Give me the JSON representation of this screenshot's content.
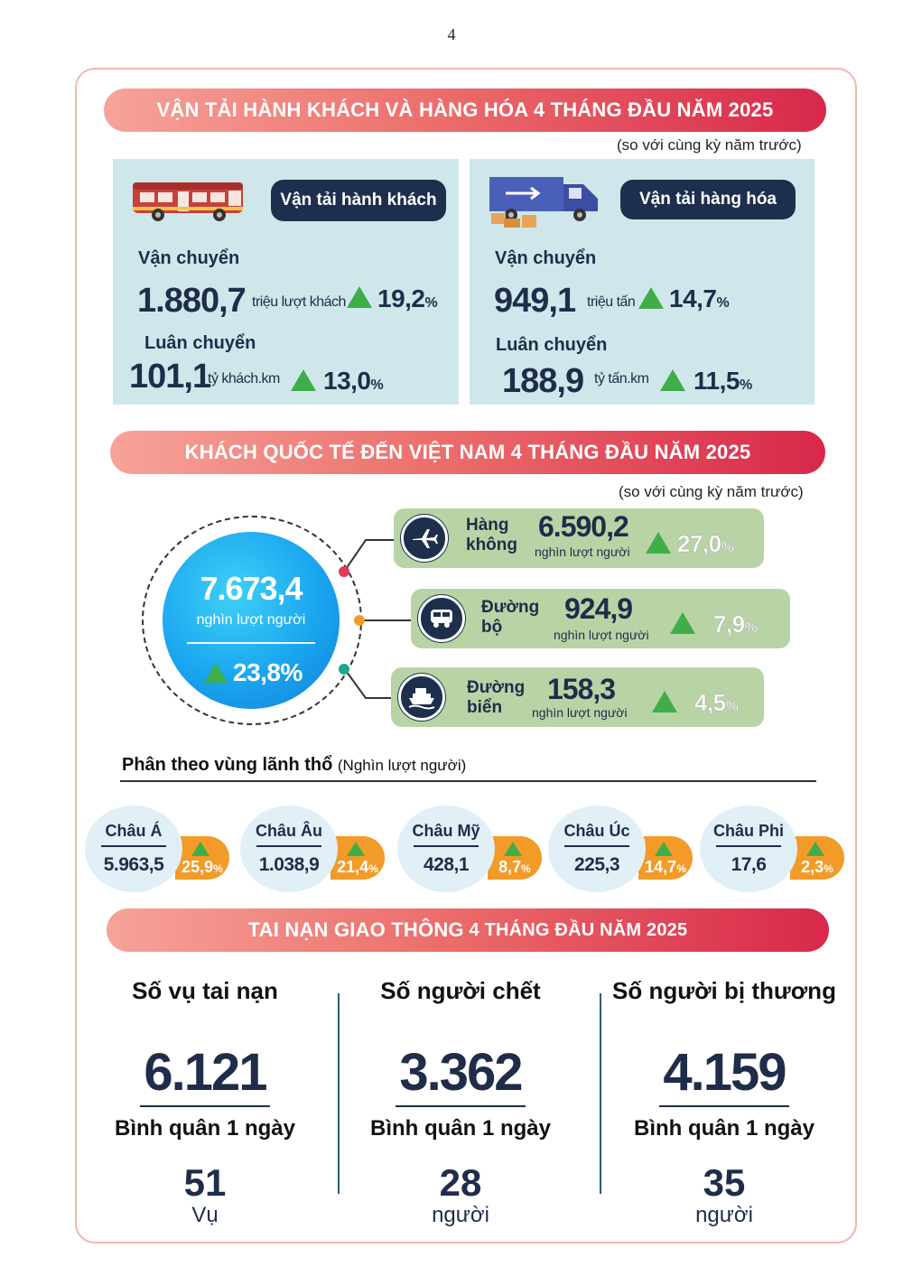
{
  "page_number": "4",
  "transport": {
    "banner": "VẬN TẢI HÀNH KHÁCH VÀ HÀNG HÓA 4 THÁNG ĐẦU NĂM 2025",
    "compare_note": "(so với cùng kỳ năm trước)",
    "passenger": {
      "pill": "Vận tải hành khách",
      "carried_label": "Vận chuyển",
      "carried_value": "1.880,7",
      "carried_unit": "triệu lượt khách",
      "carried_pct": "19,2",
      "rotation_label": "Luân chuyển",
      "rotation_value": "101,1",
      "rotation_unit": "tỷ khách.km",
      "rotation_pct": "13,0"
    },
    "cargo": {
      "pill": "Vận tải hàng hóa",
      "carried_label": "Vận chuyển",
      "carried_value": "949,1",
      "carried_unit": "triệu tấn",
      "carried_pct": "14,7",
      "rotation_label": "Luân chuyển",
      "rotation_value": "188,9",
      "rotation_unit": "tỷ tấn.km",
      "rotation_pct": "11,5"
    },
    "percent_sign": "%"
  },
  "visitors": {
    "banner": "KHÁCH QUỐC TẾ ĐẾN VIỆT NAM 4 THÁNG ĐẦU NĂM 2025",
    "compare_note": "(so với cùng kỳ năm trước)",
    "total_value": "7.673,4",
    "total_unit": "nghìn lượt người",
    "total_pct": "23,8%",
    "routes": [
      {
        "name_line1": "Hàng",
        "name_line2": "không",
        "value": "6.590,2",
        "unit": "nghìn lượt người",
        "pct": "27,0",
        "icon": "airplane-icon",
        "dot_color": "#e23a5b"
      },
      {
        "name_line1": "Đường",
        "name_line2": "bộ",
        "value": "924,9",
        "unit": "nghìn lượt người",
        "pct": "7,9",
        "icon": "car-icon",
        "dot_color": "#f29b28"
      },
      {
        "name_line1": "Đường",
        "name_line2": "biển",
        "value": "158,3",
        "unit": "nghìn lượt người",
        "pct": "4,5",
        "icon": "ship-icon",
        "dot_color": "#1aa88f"
      }
    ],
    "region_title": "Phân theo vùng lãnh thổ",
    "region_unit": "(Nghìn lượt người)",
    "regions": [
      {
        "name": "Châu Á",
        "value": "5.963,5",
        "pct": "25,9"
      },
      {
        "name": "Châu Âu",
        "value": "1.038,9",
        "pct": "21,4"
      },
      {
        "name": "Châu Mỹ",
        "value": "428,1",
        "pct": "8,7"
      },
      {
        "name": "Châu Úc",
        "value": "225,3",
        "pct": "14,7"
      },
      {
        "name": "Châu Phi",
        "value": "17,6",
        "pct": "2,3"
      }
    ]
  },
  "accidents": {
    "banner_bold": "TAI NẠN GIAO THÔNG",
    "banner_rest": " 4 THÁNG ĐẦU NĂM 2025",
    "daily_label": "Bình quân 1 ngày",
    "columns": [
      {
        "title": "Số vụ tai nạn",
        "value": "6.121",
        "daily": "51",
        "unit": "Vụ"
      },
      {
        "title": "Số người chết",
        "value": "3.362",
        "daily": "28",
        "unit": "người"
      },
      {
        "title": "Số người bị thương",
        "value": "4.159",
        "daily": "35",
        "unit": "người"
      }
    ]
  },
  "colors": {
    "navy": "#1d2f4d",
    "panel_bg": "#cfe7ea",
    "route_bg": "#b8d4a5",
    "up_green": "#3fae49",
    "orange": "#f29b28",
    "circle_blue": "#1aa5ef"
  }
}
